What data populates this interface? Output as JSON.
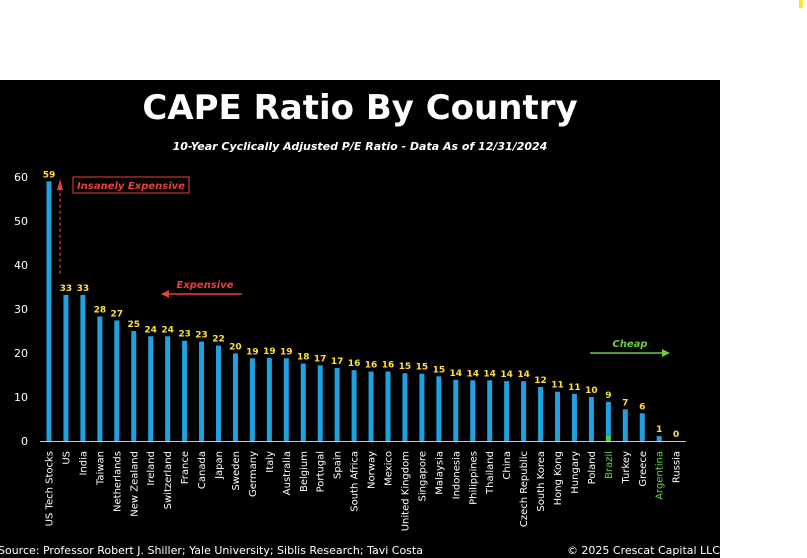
{
  "colors": {
    "background": "#000000",
    "bar": "#1fa3e0",
    "bar_cheap": "#4ecb3a",
    "value_label": "#ffe033",
    "label_cheap": "#5fd63f",
    "annotation_red": "#e8413c",
    "annotation_green": "#6ecb3c",
    "axis": "#c8c8c8",
    "corner_mark": "#ffe23a"
  },
  "chart_data": {
    "type": "bar",
    "title": "CAPE Ratio By Country",
    "subtitle": "10-Year Cyclically Adjusted P/E Ratio - Data As of 12/31/2024",
    "xlabel": "",
    "ylabel": "",
    "ylim": [
      0,
      60
    ],
    "yticks": [
      0,
      10,
      20,
      30,
      40,
      50,
      60
    ],
    "grid": false,
    "categories": [
      "US Tech Stocks",
      "US",
      "India",
      "Taiwan",
      "Netherlands",
      "New Zealand",
      "Ireland",
      "Switzerland",
      "France",
      "Canada",
      "Japan",
      "Sweden",
      "Germany",
      "Italy",
      "Australia",
      "Belgium",
      "Portugal",
      "Spain",
      "South Africa",
      "Norway",
      "Mexico",
      "United Kingdom",
      "Singapore",
      "Malaysia",
      "Indonesia",
      "Philippines",
      "Thailand",
      "China",
      "Czech Republic",
      "South Korea",
      "Hong Kong",
      "Hungary",
      "Poland",
      "Brazil",
      "Turkey",
      "Greece",
      "Argentina",
      "Russia"
    ],
    "values": [
      59,
      33.2,
      33.2,
      28.3,
      27.4,
      25,
      23.8,
      23.8,
      22.8,
      22.6,
      21.7,
      19.9,
      18.8,
      18.9,
      18.8,
      17.6,
      17.2,
      16.6,
      16.1,
      15.8,
      15.8,
      15.4,
      15.3,
      14.7,
      13.9,
      13.8,
      13.8,
      13.6,
      13.6,
      12.3,
      11.2,
      10.7,
      10,
      8.9,
      7.2,
      6.3,
      1.1,
      0
    ],
    "data_labels": [
      "59",
      "33",
      "33",
      "28",
      "27",
      "25",
      "24",
      "24",
      "23",
      "23",
      "22",
      "20",
      "19",
      "19",
      "19",
      "18",
      "17",
      "17",
      "16",
      "16",
      "16",
      "15",
      "15",
      "15",
      "14",
      "14",
      "14",
      "14",
      "14",
      "12",
      "11",
      "11",
      "10",
      "9",
      "7",
      "6",
      "1",
      "0"
    ],
    "highlighted_categories": [
      "Brazil",
      "Argentina"
    ],
    "annotations": [
      {
        "text": "Insanely Expensive",
        "style": "boxed-red"
      },
      {
        "text": "Expensive",
        "style": "red-arrow-left"
      },
      {
        "text": "Cheap",
        "style": "green-arrow-right"
      }
    ]
  },
  "footer": {
    "source": "Source: Professor Robert J. Shiller; Yale University; Siblis Research; Tavi Costa",
    "copyright": "© 2025 Crescat Capital LLC"
  }
}
